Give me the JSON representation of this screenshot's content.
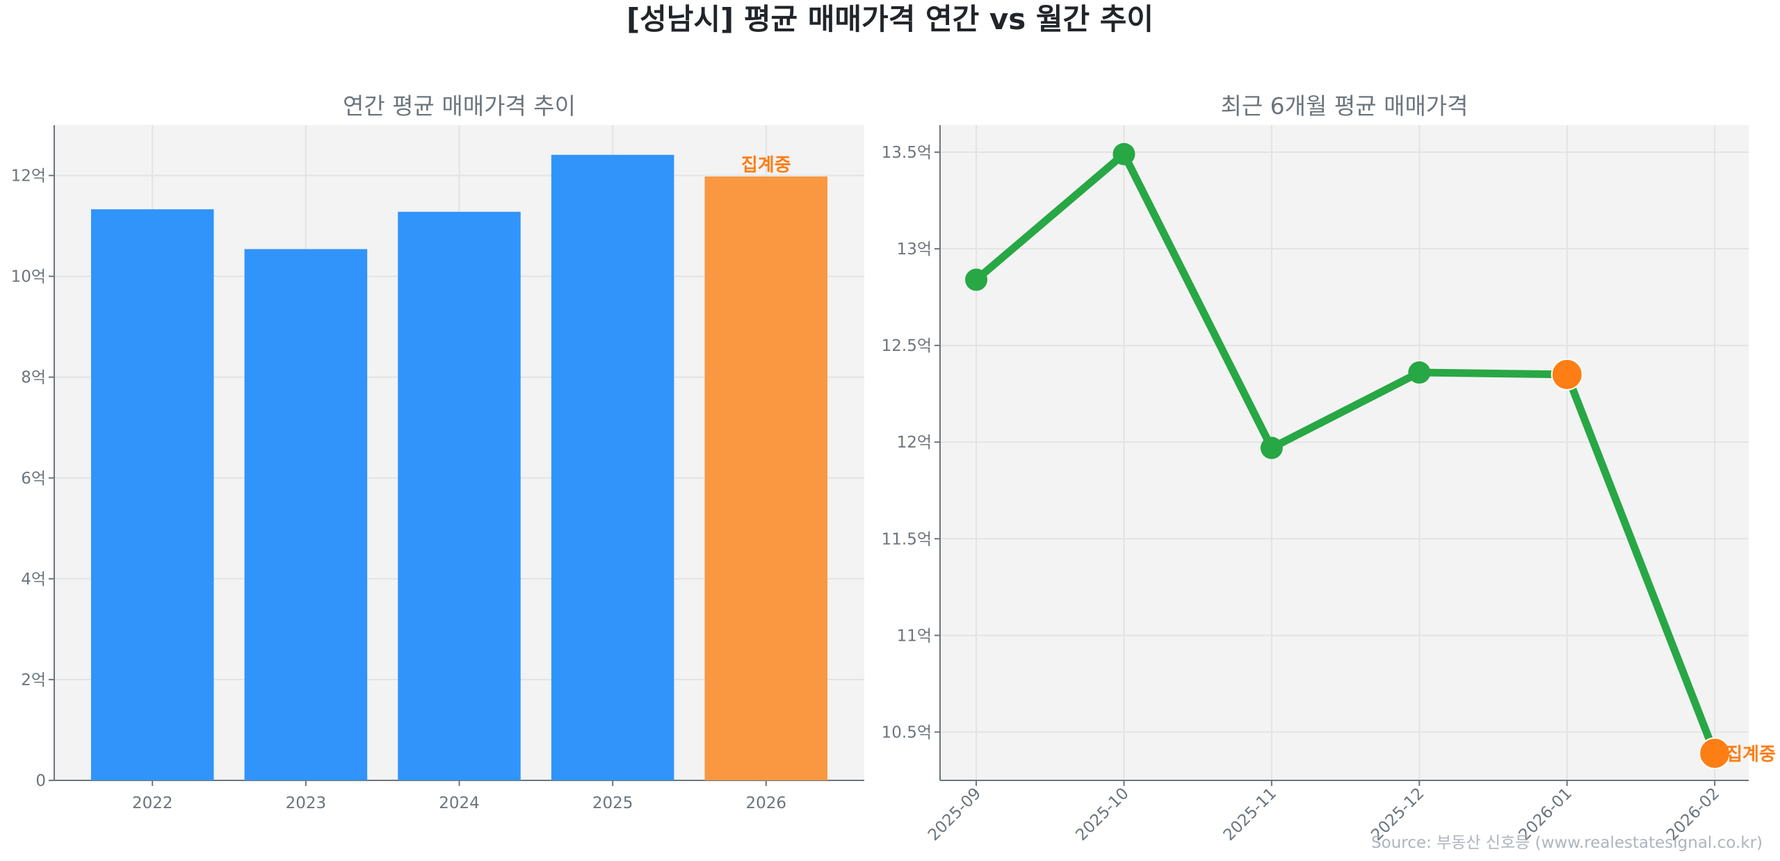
{
  "title": "[성남시] 평균 매매가격 연간 vs 월간 추이",
  "source": "Source: 부동산 신호등 (www.realestatesignal.co.kr)",
  "colors": {
    "bar": "#3194fa",
    "bar_partial": "#f99841",
    "line": "#28a745",
    "partial_marker": "#fd7e14",
    "partial_label": "#fd7e14",
    "plot_bg": "#f3f3f3"
  },
  "chart_data": [
    {
      "type": "bar",
      "title": "연간 평균 매매가격 추이",
      "categories": [
        "2022",
        "2023",
        "2024",
        "2025",
        "2026"
      ],
      "values": [
        11.33,
        10.54,
        11.28,
        12.41,
        11.98
      ],
      "unit": "억",
      "ylim": [
        0,
        13
      ],
      "yticks": [
        0,
        2,
        4,
        6,
        8,
        10,
        12
      ],
      "ytick_labels": [
        "0",
        "2억",
        "4억",
        "6억",
        "8억",
        "10억",
        "12억"
      ],
      "partial_index": 4,
      "annotation": "집계중",
      "grid": true
    },
    {
      "type": "line",
      "title": "최근 6개월 평균 매매가격",
      "categories": [
        "2025-09",
        "2025-10",
        "2025-11",
        "2025-12",
        "2026-01",
        "2026-02"
      ],
      "values": [
        12.84,
        13.49,
        11.97,
        12.36,
        12.35,
        10.39
      ],
      "unit": "억",
      "ylim": [
        10.25,
        13.64
      ],
      "yticks": [
        10.5,
        11,
        11.5,
        12,
        12.5,
        13,
        13.5
      ],
      "ytick_labels": [
        "10.5억",
        "11억",
        "11.5억",
        "12억",
        "12.5억",
        "13억",
        "13.5억"
      ],
      "partial_indices": [
        4,
        5
      ],
      "annotation": "집계중",
      "grid": true
    }
  ]
}
